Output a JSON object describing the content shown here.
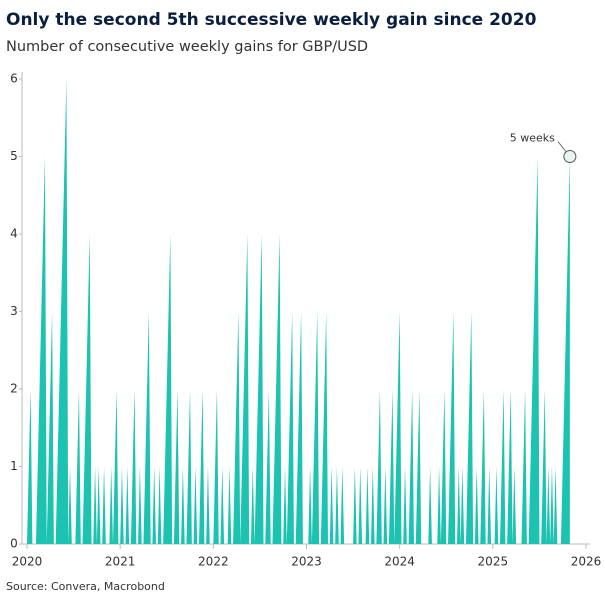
{
  "chart_data": {
    "type": "area",
    "title": "Only the second 5th successive weekly gain since 2020",
    "subtitle": "Number of consecutive weekly gains for GBP/USD",
    "source": "Source: Convera, Macrobond",
    "annotation": "5 weeks",
    "color": "#1cc3b0",
    "categories": [
      "2020",
      null,
      null,
      null,
      null,
      null,
      null,
      null,
      null,
      null,
      null,
      null,
      null,
      null,
      null,
      null,
      null,
      null,
      null,
      null,
      null,
      null,
      null,
      null,
      null,
      null,
      null,
      null,
      null,
      null,
      null,
      null,
      null,
      null,
      null,
      null,
      null,
      null,
      null,
      null,
      null,
      null,
      null,
      null,
      null,
      null,
      null,
      null,
      null,
      null,
      null,
      null,
      "2021",
      null,
      null,
      null,
      null,
      null,
      null,
      null,
      null,
      null,
      null,
      null,
      null,
      null,
      null,
      null,
      null,
      null,
      null,
      null,
      null,
      null,
      null,
      null,
      null,
      null,
      null,
      null,
      null,
      null,
      null,
      null,
      null,
      null,
      null,
      null,
      null,
      null,
      null,
      null,
      null,
      null,
      null,
      null,
      null,
      null,
      null,
      null,
      null,
      null,
      null,
      null,
      "2022",
      null,
      null,
      null,
      null,
      null,
      null,
      null,
      null,
      null,
      null,
      null,
      null,
      null,
      null,
      null,
      null,
      null,
      null,
      null,
      null,
      null,
      null,
      null,
      null,
      null,
      null,
      null,
      null,
      null,
      null,
      null,
      null,
      null,
      null,
      null,
      null,
      null,
      null,
      null,
      null,
      null,
      null,
      null,
      null,
      null,
      null,
      null,
      null,
      null,
      null,
      null,
      "2023",
      null,
      null,
      null,
      null,
      null,
      null,
      null,
      null,
      null,
      null,
      null,
      null,
      null,
      null,
      null,
      null,
      null,
      null,
      null,
      null,
      null,
      null,
      null,
      null,
      null,
      null,
      null,
      null,
      null,
      null,
      null,
      null,
      null,
      null,
      null,
      null,
      null,
      null,
      null,
      null,
      null,
      null,
      null,
      null,
      null,
      null,
      null,
      null,
      null,
      null,
      null,
      "2024",
      null,
      null,
      null,
      null,
      null,
      null,
      null,
      null,
      null,
      null,
      null,
      null,
      null,
      null,
      null,
      null,
      null,
      null,
      null,
      null,
      null,
      null,
      null,
      null,
      null,
      null,
      null,
      null,
      null,
      null,
      null,
      null,
      null,
      null,
      null,
      null,
      null,
      null,
      null,
      null,
      null,
      null,
      null,
      null,
      null,
      null,
      null,
      null,
      null,
      null,
      null,
      "2025",
      null,
      null,
      null,
      null,
      null,
      null,
      null,
      null,
      null,
      null,
      null,
      null,
      null,
      null,
      null,
      null,
      null,
      null,
      null,
      null,
      null,
      null,
      null,
      null,
      null,
      null,
      null,
      null,
      null,
      null,
      null,
      null,
      null,
      null,
      null,
      null,
      null,
      null,
      null,
      null,
      null,
      null,
      null,
      null,
      null,
      null,
      null,
      null,
      null,
      null,
      null,
      "2026"
    ],
    "values": [
      0,
      1,
      2,
      0,
      0,
      0,
      1,
      2,
      3,
      4,
      5,
      0,
      1,
      2,
      3,
      0,
      0,
      1,
      2,
      3,
      4,
      5,
      6,
      0,
      1,
      0,
      0,
      0,
      1,
      2,
      0,
      0,
      1,
      2,
      3,
      4,
      0,
      0,
      1,
      0,
      1,
      0,
      0,
      1,
      0,
      0,
      0,
      1,
      0,
      1,
      2,
      0,
      0,
      1,
      0,
      0,
      1,
      0,
      0,
      1,
      2,
      0,
      0,
      1,
      0,
      0,
      1,
      2,
      3,
      0,
      0,
      1,
      0,
      0,
      1,
      0,
      0,
      1,
      2,
      3,
      4,
      0,
      0,
      1,
      2,
      0,
      0,
      1,
      0,
      0,
      1,
      2,
      0,
      0,
      1,
      0,
      0,
      1,
      2,
      0,
      0,
      1,
      0,
      0,
      0,
      1,
      2,
      0,
      0,
      1,
      0,
      0,
      0,
      1,
      0,
      0,
      1,
      2,
      3,
      0,
      1,
      2,
      3,
      4,
      0,
      0,
      1,
      0,
      1,
      2,
      3,
      4,
      0,
      0,
      1,
      2,
      0,
      0,
      1,
      2,
      3,
      4,
      0,
      0,
      1,
      0,
      1,
      2,
      3,
      0,
      0,
      1,
      2,
      3,
      0,
      0,
      0,
      0,
      1,
      0,
      1,
      2,
      3,
      0,
      0,
      1,
      2,
      3,
      0,
      0,
      1,
      0,
      0,
      1,
      0,
      0,
      1,
      0,
      0,
      0,
      0,
      0,
      0,
      1,
      0,
      0,
      1,
      0,
      0,
      0,
      1,
      0,
      0,
      1,
      0,
      0,
      1,
      2,
      0,
      0,
      1,
      0,
      0,
      1,
      2,
      0,
      1,
      2,
      3,
      0,
      0,
      1,
      0,
      0,
      1,
      2,
      0,
      0,
      1,
      2,
      0,
      0,
      0,
      0,
      0,
      1,
      0,
      0,
      0,
      0,
      1,
      0,
      1,
      2,
      0,
      0,
      1,
      2,
      3,
      0,
      0,
      1,
      0,
      1,
      0,
      0,
      1,
      2,
      3,
      0,
      0,
      1,
      0,
      0,
      1,
      2,
      0,
      0,
      1,
      0,
      0,
      0,
      1,
      0,
      0,
      1,
      2,
      0,
      0,
      1,
      2,
      0,
      1,
      0,
      0,
      0,
      0,
      1,
      2,
      0,
      0,
      1,
      2,
      3,
      4,
      5,
      0,
      0,
      1,
      2,
      0,
      1,
      0,
      1,
      0,
      1,
      0,
      0,
      0,
      1,
      2,
      3,
      4,
      5,
      null,
      null,
      null,
      null,
      null,
      null,
      null,
      null,
      null
    ],
    "ylim": [
      0,
      6
    ],
    "yticks": [
      0,
      1,
      2,
      3,
      4,
      5,
      6
    ]
  }
}
